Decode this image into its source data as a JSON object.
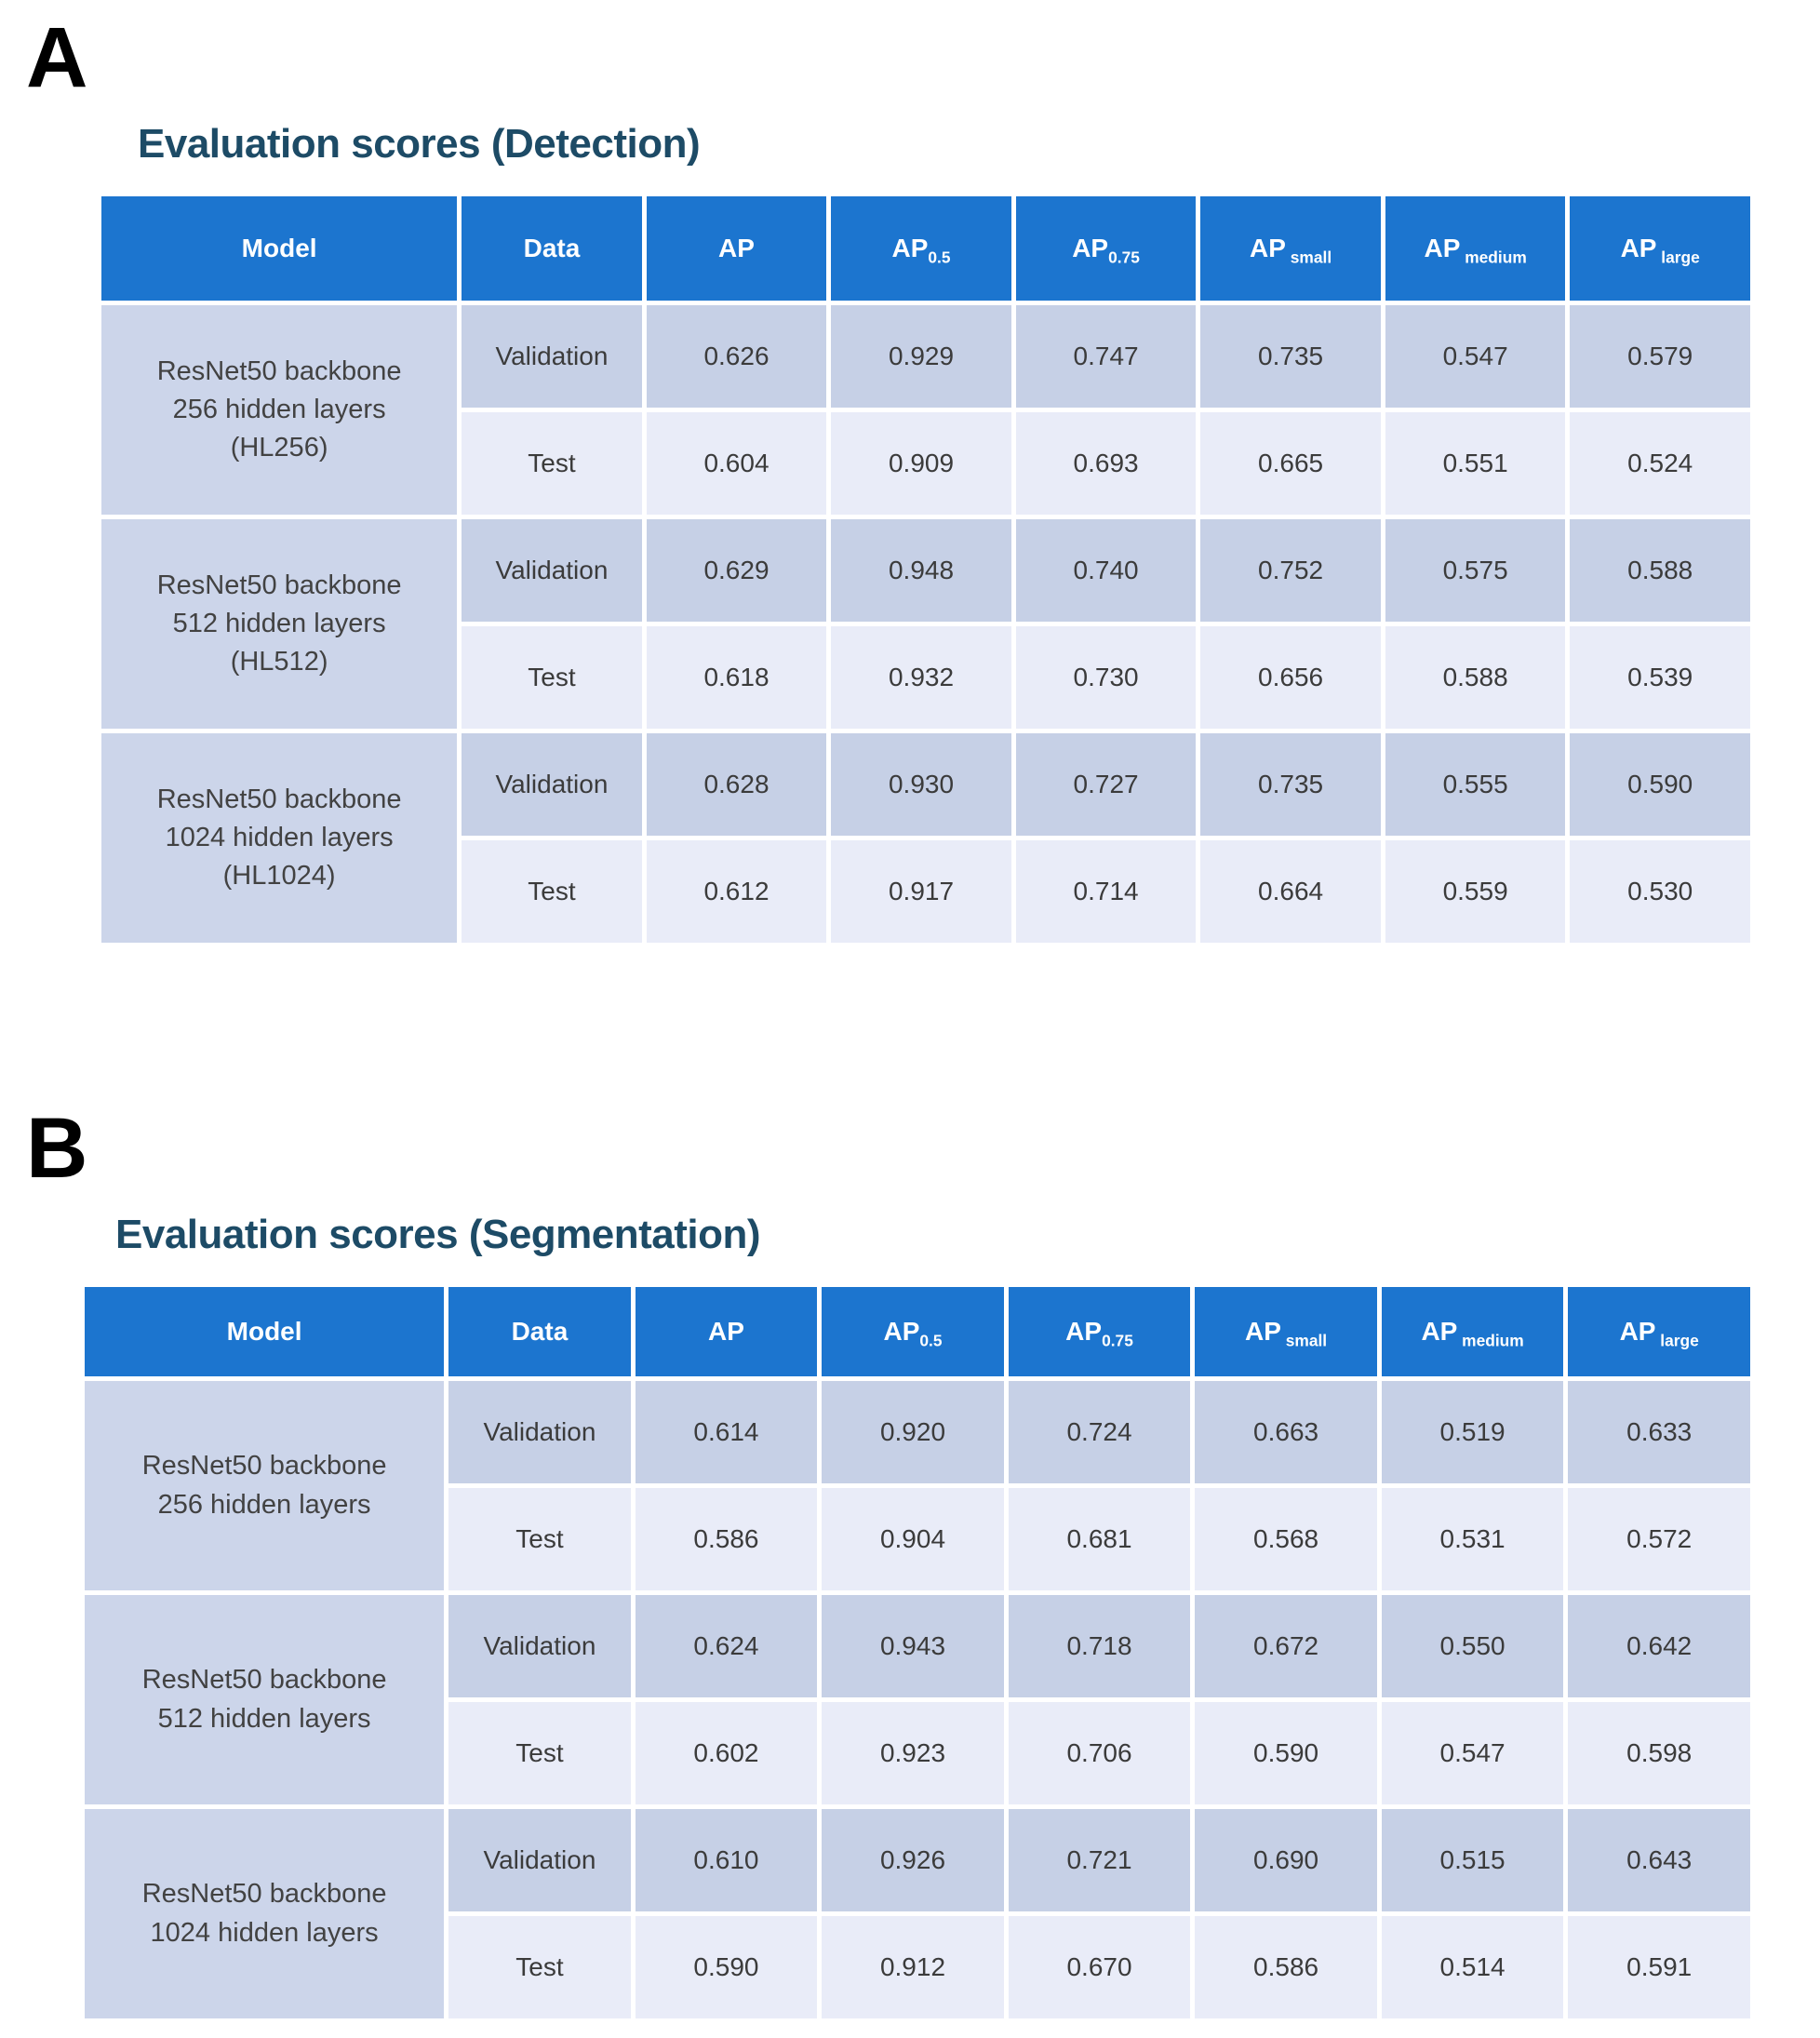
{
  "colors": {
    "header_bg": "#1c75cf",
    "header_text": "#ffffff",
    "model_cell_bg": "#ccd5ea",
    "validation_row_bg": "#c6d0e6",
    "test_row_bg": "#e9ecf8",
    "title_color": "#1d4b66",
    "panel_label_color": "#000000",
    "cell_text": "#3b3b3b"
  },
  "figure": {
    "panels": [
      {
        "label": "A",
        "title": "Evaluation scores (Detection)",
        "table": {
          "headers": [
            {
              "text": "Model"
            },
            {
              "text": "Data"
            },
            {
              "text": "AP"
            },
            {
              "text": "AP",
              "sub": "0.5"
            },
            {
              "text": "AP",
              "sub": "0.75"
            },
            {
              "text": "AP",
              "sub": "small",
              "space": true
            },
            {
              "text": "AP",
              "sub": "medium",
              "space": true
            },
            {
              "text": "AP",
              "sub": "large",
              "space": true
            }
          ],
          "groups": [
            {
              "model": [
                "ResNet50 backbone",
                "256 hidden layers",
                "(HL256)"
              ],
              "rows": [
                {
                  "data": "Validation",
                  "values": [
                    "0.626",
                    "0.929",
                    "0.747",
                    "0.735",
                    "0.547",
                    "0.579"
                  ]
                },
                {
                  "data": "Test",
                  "values": [
                    "0.604",
                    "0.909",
                    "0.693",
                    "0.665",
                    "0.551",
                    "0.524"
                  ]
                }
              ]
            },
            {
              "model": [
                "ResNet50 backbone",
                "512 hidden layers",
                "(HL512)"
              ],
              "rows": [
                {
                  "data": "Validation",
                  "values": [
                    "0.629",
                    "0.948",
                    "0.740",
                    "0.752",
                    "0.575",
                    "0.588"
                  ]
                },
                {
                  "data": "Test",
                  "values": [
                    "0.618",
                    "0.932",
                    "0.730",
                    "0.656",
                    "0.588",
                    "0.539"
                  ]
                }
              ]
            },
            {
              "model": [
                "ResNet50 backbone",
                "1024 hidden layers",
                "(HL1024)"
              ],
              "rows": [
                {
                  "data": "Validation",
                  "values": [
                    "0.628",
                    "0.930",
                    "0.727",
                    "0.735",
                    "0.555",
                    "0.590"
                  ]
                },
                {
                  "data": "Test",
                  "values": [
                    "0.612",
                    "0.917",
                    "0.714",
                    "0.664",
                    "0.559",
                    "0.530"
                  ]
                }
              ]
            }
          ]
        }
      },
      {
        "label": "B",
        "title": "Evaluation scores (Segmentation)",
        "table": {
          "headers": [
            {
              "text": "Model"
            },
            {
              "text": "Data"
            },
            {
              "text": "AP"
            },
            {
              "text": "AP",
              "sub": "0.5"
            },
            {
              "text": "AP",
              "sub": "0.75"
            },
            {
              "text": "AP",
              "sub": "small",
              "space": true
            },
            {
              "text": "AP",
              "sub": "medium",
              "space": true
            },
            {
              "text": "AP",
              "sub": "large",
              "space": true
            }
          ],
          "groups": [
            {
              "model": [
                "ResNet50 backbone",
                "256 hidden layers"
              ],
              "rows": [
                {
                  "data": "Validation",
                  "values": [
                    "0.614",
                    "0.920",
                    "0.724",
                    "0.663",
                    "0.519",
                    "0.633"
                  ]
                },
                {
                  "data": "Test",
                  "values": [
                    "0.586",
                    "0.904",
                    "0.681",
                    "0.568",
                    "0.531",
                    "0.572"
                  ]
                }
              ]
            },
            {
              "model": [
                "ResNet50 backbone",
                "512 hidden layers"
              ],
              "rows": [
                {
                  "data": "Validation",
                  "values": [
                    "0.624",
                    "0.943",
                    "0.718",
                    "0.672",
                    "0.550",
                    "0.642"
                  ]
                },
                {
                  "data": "Test",
                  "values": [
                    "0.602",
                    "0.923",
                    "0.706",
                    "0.590",
                    "0.547",
                    "0.598"
                  ]
                }
              ]
            },
            {
              "model": [
                "ResNet50 backbone",
                "1024 hidden layers"
              ],
              "rows": [
                {
                  "data": "Validation",
                  "values": [
                    "0.610",
                    "0.926",
                    "0.721",
                    "0.690",
                    "0.515",
                    "0.643"
                  ]
                },
                {
                  "data": "Test",
                  "values": [
                    "0.590",
                    "0.912",
                    "0.670",
                    "0.586",
                    "0.514",
                    "0.591"
                  ]
                }
              ]
            }
          ]
        }
      }
    ]
  }
}
